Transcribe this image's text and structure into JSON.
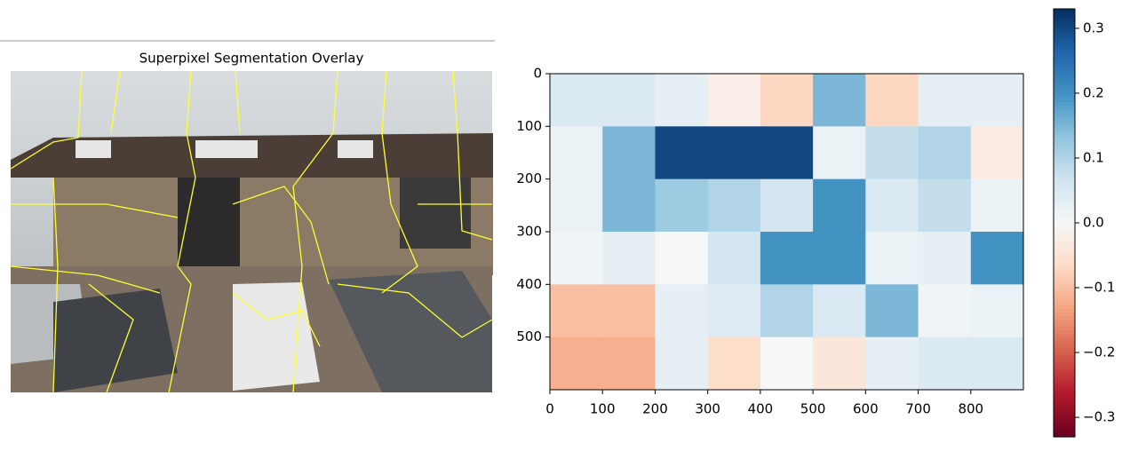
{
  "chart_data": [
    {
      "type": "image",
      "title": "Superpixel Segmentation Overlay"
    },
    {
      "type": "heatmap",
      "cmap": "RdBu",
      "xbins": [
        0,
        100,
        200,
        300,
        400,
        500,
        600,
        700,
        800,
        900
      ],
      "ybins": [
        0,
        100,
        200,
        300,
        400,
        500,
        600
      ],
      "values": [
        [
          0.05,
          0.05,
          0.03,
          -0.02,
          -0.07,
          0.15,
          -0.07,
          0.03,
          0.03
        ],
        [
          0.02,
          0.15,
          0.3,
          0.3,
          0.3,
          0.02,
          0.08,
          0.1,
          -0.03
        ],
        [
          0.02,
          0.15,
          0.12,
          0.1,
          0.06,
          0.2,
          0.05,
          0.08,
          0.02
        ],
        [
          0.01,
          0.03,
          0.0,
          0.06,
          0.2,
          0.2,
          0.02,
          0.03,
          0.2
        ],
        [
          -0.1,
          -0.1,
          0.03,
          0.04,
          0.1,
          0.05,
          0.15,
          0.01,
          0.02
        ],
        [
          -0.12,
          -0.12,
          0.03,
          -0.06,
          0.0,
          -0.04,
          0.03,
          0.05,
          0.05
        ]
      ],
      "xlim": [
        0,
        900
      ],
      "xticks": [
        0,
        100,
        200,
        300,
        400,
        500,
        600,
        700,
        800
      ],
      "ylim": [
        600,
        0
      ],
      "yticks": [
        0,
        100,
        200,
        300,
        400,
        500
      ],
      "clim": [
        -0.33,
        0.33
      ],
      "cticks": [
        {
          "value": -0.3,
          "label": "−0.3"
        },
        {
          "value": -0.2,
          "label": "−0.2"
        },
        {
          "value": -0.1,
          "label": "−0.1"
        },
        {
          "value": 0,
          "label": "0.0"
        },
        0.1,
        0.2,
        0.3
      ]
    }
  ]
}
